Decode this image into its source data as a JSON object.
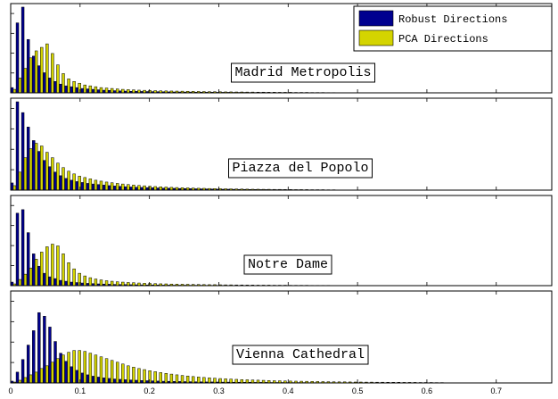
{
  "chart_data": {
    "type": "bar",
    "legend": {
      "placement": "top-right",
      "entries": [
        {
          "name": "Robust Directions",
          "color": "#00008f"
        },
        {
          "name": "PCA Directions",
          "color": "#d4d400"
        }
      ]
    },
    "x_range": [
      0,
      0.78
    ],
    "bin_width": 0.0078,
    "x_ticks": [
      0,
      0.1,
      0.2,
      0.3,
      0.4,
      0.5,
      0.6,
      0.7
    ],
    "x_tick_labels": [
      "0",
      "0.1",
      "0.2",
      "0.3",
      "0.4",
      "0.5",
      "0.6",
      "0.7"
    ],
    "grid": false,
    "panels": [
      {
        "label": "Madrid Metropolis",
        "y_max": 1.0,
        "robust": [
          0.06,
          0.8,
          0.98,
          0.61,
          0.42,
          0.31,
          0.23,
          0.17,
          0.13,
          0.1,
          0.08,
          0.07,
          0.06,
          0.05,
          0.045,
          0.04,
          0.035,
          0.03,
          0.028,
          0.025,
          0.022,
          0.02,
          0.018,
          0.017,
          0.016,
          0.015,
          0.014,
          0.013,
          0.012,
          0.011,
          0.01,
          0.01,
          0.009,
          0.009,
          0.008,
          0.008,
          0.007,
          0.007,
          0.006,
          0.006,
          0.006,
          0.005,
          0.005,
          0.005,
          0.004,
          0.004,
          0.004,
          0.004,
          0.003,
          0.003,
          0.003,
          0.003,
          0.002,
          0.002,
          0.002,
          0.002,
          0.002,
          0.001,
          0.001,
          0.001
        ],
        "pca": [
          0.04,
          0.17,
          0.28,
          0.4,
          0.48,
          0.52,
          0.56,
          0.45,
          0.32,
          0.22,
          0.16,
          0.13,
          0.11,
          0.09,
          0.08,
          0.07,
          0.06,
          0.055,
          0.05,
          0.045,
          0.04,
          0.037,
          0.034,
          0.031,
          0.029,
          0.027,
          0.025,
          0.023,
          0.022,
          0.021,
          0.02,
          0.019,
          0.018,
          0.017,
          0.016,
          0.015,
          0.014,
          0.013,
          0.012,
          0.011,
          0.011,
          0.01,
          0.01,
          0.009,
          0.009,
          0.008,
          0.008,
          0.007,
          0.007,
          0.006,
          0.006,
          0.006,
          0.005,
          0.005,
          0.005,
          0.004,
          0.004,
          0.004,
          0.003,
          0.003
        ]
      },
      {
        "label": "Piazza del Popolo",
        "y_max": 1.0,
        "robust": [
          0.08,
          0.98,
          0.86,
          0.7,
          0.55,
          0.43,
          0.33,
          0.26,
          0.2,
          0.16,
          0.13,
          0.11,
          0.095,
          0.085,
          0.075,
          0.068,
          0.062,
          0.056,
          0.05,
          0.046,
          0.042,
          0.038,
          0.035,
          0.032,
          0.03,
          0.028,
          0.026,
          0.024,
          0.022,
          0.021,
          0.02,
          0.018,
          0.017,
          0.016,
          0.015,
          0.014,
          0.013,
          0.012,
          0.011,
          0.01,
          0.01,
          0.009,
          0.008,
          0.008,
          0.007,
          0.007,
          0.006,
          0.006,
          0.005,
          0.005,
          0.005,
          0.004,
          0.004,
          0.004,
          0.003,
          0.003,
          0.003,
          0.003,
          0.002,
          0.002
        ],
        "pca": [
          0.05,
          0.2,
          0.36,
          0.46,
          0.52,
          0.49,
          0.42,
          0.36,
          0.3,
          0.25,
          0.21,
          0.18,
          0.155,
          0.14,
          0.125,
          0.11,
          0.1,
          0.09,
          0.082,
          0.075,
          0.068,
          0.062,
          0.057,
          0.052,
          0.048,
          0.044,
          0.04,
          0.037,
          0.034,
          0.031,
          0.029,
          0.027,
          0.025,
          0.023,
          0.021,
          0.02,
          0.018,
          0.017,
          0.016,
          0.015,
          0.014,
          0.013,
          0.012,
          0.011,
          0.01,
          0.01,
          0.009,
          0.009,
          0.008,
          0.008,
          0.007,
          0.007,
          0.006,
          0.006,
          0.006,
          0.005,
          0.005,
          0.005,
          0.004,
          0.004
        ]
      },
      {
        "label": "Notre Dame",
        "y_max": 1.0,
        "robust": [
          0.04,
          0.82,
          0.86,
          0.6,
          0.36,
          0.22,
          0.14,
          0.1,
          0.08,
          0.06,
          0.05,
          0.04,
          0.035,
          0.03,
          0.026,
          0.023,
          0.02,
          0.018,
          0.016,
          0.014,
          0.013,
          0.012,
          0.011,
          0.01,
          0.009,
          0.008,
          0.008,
          0.007,
          0.006,
          0.006,
          0.005,
          0.005,
          0.005,
          0.004,
          0.004,
          0.004,
          0.003,
          0.003,
          0.003,
          0.003,
          0.002,
          0.002,
          0.002,
          0.002,
          0.002,
          0.002,
          0.001,
          0.001,
          0.001,
          0.001,
          0.001,
          0.001,
          0.001,
          0.001,
          0.001,
          0.001,
          0.001,
          0.001,
          0.001,
          0.001
        ],
        "pca": [
          0.02,
          0.07,
          0.13,
          0.2,
          0.3,
          0.38,
          0.44,
          0.47,
          0.45,
          0.36,
          0.26,
          0.19,
          0.14,
          0.11,
          0.09,
          0.075,
          0.065,
          0.056,
          0.05,
          0.044,
          0.04,
          0.036,
          0.033,
          0.03,
          0.027,
          0.025,
          0.023,
          0.021,
          0.02,
          0.018,
          0.017,
          0.016,
          0.015,
          0.014,
          0.013,
          0.012,
          0.011,
          0.011,
          0.01,
          0.009,
          0.009,
          0.008,
          0.008,
          0.007,
          0.007,
          0.006,
          0.006,
          0.006,
          0.005,
          0.005,
          0.005,
          0.004,
          0.004,
          0.004,
          0.004,
          0.003,
          0.003,
          0.003,
          0.003,
          0.002
        ]
      },
      {
        "label": "Vienna Cathedral",
        "y_max": 1.0,
        "robust": [
          0.02,
          0.12,
          0.26,
          0.42,
          0.58,
          0.78,
          0.74,
          0.62,
          0.46,
          0.33,
          0.24,
          0.18,
          0.14,
          0.11,
          0.09,
          0.075,
          0.065,
          0.056,
          0.05,
          0.044,
          0.04,
          0.036,
          0.033,
          0.03,
          0.027,
          0.025,
          0.023,
          0.021,
          0.019,
          0.018,
          0.017,
          0.016,
          0.015,
          0.014,
          0.013,
          0.012,
          0.011,
          0.011,
          0.01,
          0.009,
          0.009,
          0.008,
          0.008,
          0.007,
          0.007,
          0.006,
          0.006,
          0.006,
          0.005,
          0.005,
          0.005,
          0.004,
          0.004,
          0.004,
          0.004,
          0.003,
          0.003,
          0.003,
          0.003,
          0.003,
          0.002,
          0.002,
          0.002,
          0.002,
          0.002,
          0.002,
          0.002,
          0.001,
          0.001,
          0.001,
          0.001,
          0.001,
          0.001,
          0.001,
          0.001,
          0.001,
          0.001,
          0.001,
          0.001,
          0.001
        ],
        "pca": [
          0.01,
          0.03,
          0.06,
          0.09,
          0.12,
          0.16,
          0.19,
          0.23,
          0.27,
          0.31,
          0.34,
          0.36,
          0.36,
          0.35,
          0.33,
          0.31,
          0.29,
          0.27,
          0.25,
          0.23,
          0.21,
          0.19,
          0.175,
          0.16,
          0.148,
          0.136,
          0.125,
          0.115,
          0.106,
          0.098,
          0.09,
          0.083,
          0.077,
          0.071,
          0.066,
          0.061,
          0.057,
          0.053,
          0.049,
          0.046,
          0.043,
          0.04,
          0.037,
          0.035,
          0.033,
          0.031,
          0.029,
          0.027,
          0.025,
          0.024,
          0.022,
          0.021,
          0.02,
          0.019,
          0.018,
          0.017,
          0.016,
          0.015,
          0.014,
          0.013,
          0.012,
          0.012,
          0.011,
          0.01,
          0.01,
          0.009,
          0.009,
          0.008,
          0.008,
          0.007,
          0.007,
          0.007,
          0.006,
          0.006,
          0.006,
          0.005,
          0.005,
          0.005,
          0.004,
          0.004
        ]
      }
    ]
  }
}
